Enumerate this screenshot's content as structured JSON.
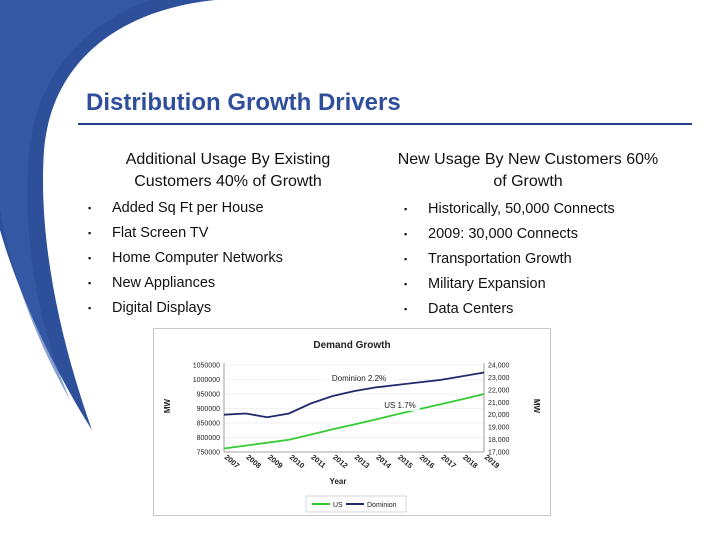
{
  "slide": {
    "title": "Distribution Growth Drivers",
    "left_heading": "Additional Usage By Existing Customers 40% of Growth",
    "right_heading": "New Usage By New Customers 60% of Growth",
    "left_bullets": [
      "Added Sq Ft per House",
      "Flat Screen TV",
      "Home Computer Networks",
      "New Appliances",
      "Digital Displays"
    ],
    "right_bullets": [
      "Historically, 50,000 Connects",
      "2009: 30,000 Connects",
      "Transportation Growth",
      "Military Expansion",
      "Data Centers"
    ],
    "bullet_glyph": "▪",
    "colors": {
      "title": "#2f4f9c",
      "swoosh": "#2e4f9a",
      "us_line": "#33cc33",
      "dominion_line": "#1f2a6b"
    }
  },
  "chart_data": {
    "type": "line",
    "title": "Demand Growth",
    "xlabel": "Year",
    "ylabel_left": "MW",
    "ylabel_right": "MW",
    "categories": [
      "2007",
      "2008",
      "2009",
      "2010",
      "2011",
      "2012",
      "2013",
      "2014",
      "2015",
      "2016",
      "2017",
      "2018",
      "2019"
    ],
    "left_ticks": [
      "1050000",
      "1000000",
      "950000",
      "900000",
      "850000",
      "800000",
      "750000"
    ],
    "right_ticks": [
      "24,000",
      "23,000",
      "22,000",
      "21,000",
      "20,000",
      "19,000",
      "18,000",
      "17,000"
    ],
    "ylim_left": [
      750000,
      1050000
    ],
    "ylim_right": [
      17000,
      24000
    ],
    "series": [
      {
        "name": "US",
        "axis": "left",
        "values": [
          762000,
          772000,
          782000,
          792000,
          810000,
          828000,
          845000,
          862000,
          880000,
          898000,
          915000,
          932000,
          950000
        ]
      },
      {
        "name": "Dominion",
        "axis": "right",
        "values": [
          20000,
          20100,
          19800,
          20100,
          20900,
          21500,
          21900,
          22200,
          22400,
          22600,
          22800,
          23100,
          23400
        ]
      }
    ],
    "annotations": [
      "Dominion 2.2%",
      "US 1.7%"
    ],
    "legend": "bottom-center"
  }
}
